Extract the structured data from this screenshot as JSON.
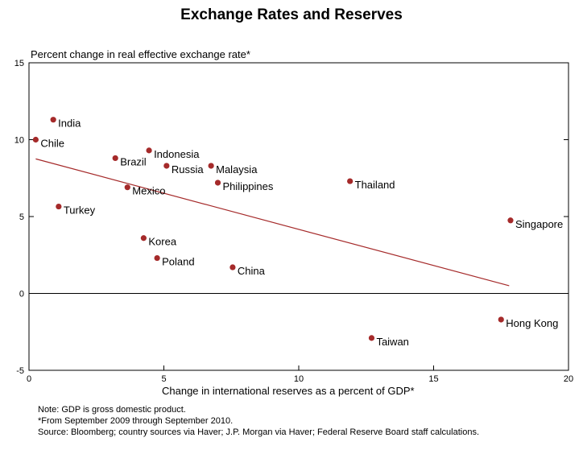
{
  "chart_data": {
    "type": "scatter",
    "title": "Exchange Rates and Reserves",
    "ylabel": "Percent change in real effective exchange rate*",
    "xlabel": "Change in international reserves as a percent of GDP*",
    "xlim": [
      0,
      20
    ],
    "ylim": [
      -5,
      15
    ],
    "xticks": [
      0,
      5,
      10,
      15,
      20
    ],
    "yticks": [
      -5,
      0,
      5,
      10,
      15
    ],
    "grid": false,
    "zero_line": true,
    "marker_color": "#a52a2a",
    "trend_color": "#a52a2a",
    "points": [
      {
        "label": "India",
        "x": 0.9,
        "y": 11.3
      },
      {
        "label": "Chile",
        "x": 0.25,
        "y": 10.0
      },
      {
        "label": "Brazil",
        "x": 3.2,
        "y": 8.8
      },
      {
        "label": "Indonesia",
        "x": 4.45,
        "y": 9.3
      },
      {
        "label": "Russia",
        "x": 5.1,
        "y": 8.3
      },
      {
        "label": "Malaysia",
        "x": 6.75,
        "y": 8.3
      },
      {
        "label": "Philippines",
        "x": 7.0,
        "y": 7.2
      },
      {
        "label": "Thailand",
        "x": 11.9,
        "y": 7.3
      },
      {
        "label": "Mexico",
        "x": 3.65,
        "y": 6.9
      },
      {
        "label": "Turkey",
        "x": 1.1,
        "y": 5.65
      },
      {
        "label": "Singapore",
        "x": 17.85,
        "y": 4.75
      },
      {
        "label": "Korea",
        "x": 4.25,
        "y": 3.6
      },
      {
        "label": "Poland",
        "x": 4.75,
        "y": 2.3
      },
      {
        "label": "China",
        "x": 7.55,
        "y": 1.7
      },
      {
        "label": "Hong Kong",
        "x": 17.5,
        "y": -1.7
      },
      {
        "label": "Taiwan",
        "x": 12.7,
        "y": -2.9
      }
    ],
    "trend_line": {
      "x": [
        0.25,
        17.8
      ],
      "y": [
        8.75,
        0.5
      ]
    }
  },
  "notes": [
    "Note: GDP is gross domestic product.",
    "*From September 2009 through September 2010.",
    "Source: Bloomberg; country sources via Haver; J.P. Morgan via Haver; Federal Reserve Board staff calculations."
  ]
}
